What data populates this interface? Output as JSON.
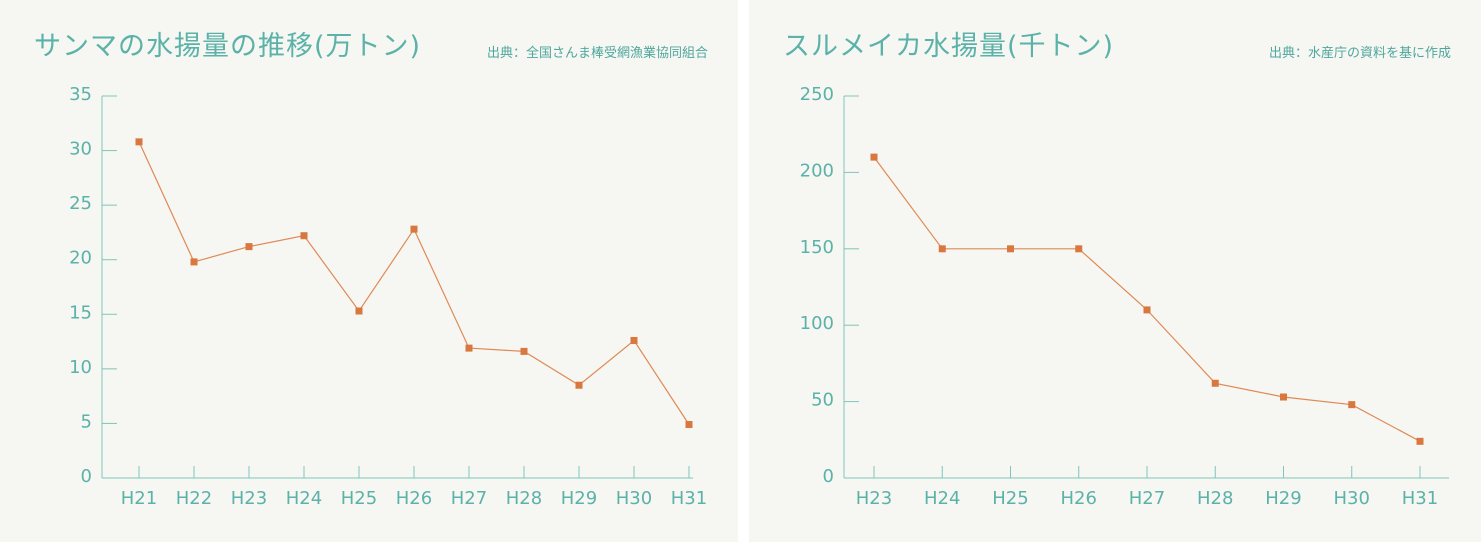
{
  "colors": {
    "panel_bg": "#f6f6f3",
    "accent_text": "#5bb2a8",
    "axis": "#7fc5bc",
    "line": "#df8a55",
    "marker": "#d9783e"
  },
  "chart_data": [
    {
      "type": "line",
      "title": "サンマの水揚量の推移(万トン)",
      "source": "出典：全国さんま棒受網漁業協同組合",
      "xlabel": "",
      "ylabel": "",
      "categories": [
        "H21",
        "H22",
        "H23",
        "H24",
        "H25",
        "H26",
        "H27",
        "H28",
        "H29",
        "H30",
        "H31"
      ],
      "series": [
        {
          "values": [
            30.8,
            19.8,
            21.2,
            22.2,
            15.3,
            22.8,
            11.9,
            11.6,
            8.5,
            12.6,
            4.9
          ]
        }
      ],
      "ylim": [
        0,
        35
      ],
      "yticks": [
        0,
        5,
        10,
        15,
        20,
        25,
        30,
        35
      ],
      "legend": "none",
      "grid": false
    },
    {
      "type": "line",
      "title": "スルメイカ水揚量(千トン)",
      "source": "出典：水産庁の資料を基に作成",
      "xlabel": "",
      "ylabel": "",
      "categories": [
        "H23",
        "H24",
        "H25",
        "H26",
        "H27",
        "H28",
        "H29",
        "H30",
        "H31"
      ],
      "series": [
        {
          "values": [
            210,
            150,
            150,
            150,
            110,
            62,
            53,
            48,
            24
          ]
        }
      ],
      "ylim": [
        0,
        250
      ],
      "yticks": [
        0,
        50,
        100,
        150,
        200,
        250
      ],
      "legend": "none",
      "grid": false
    }
  ]
}
